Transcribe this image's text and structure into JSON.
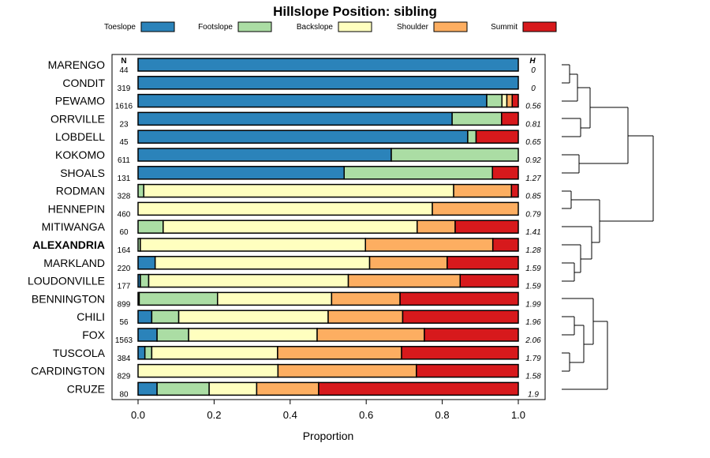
{
  "chart_data": {
    "type": "bar",
    "stacked": true,
    "orientation": "horizontal",
    "title": "Hillslope Position: sibling",
    "xlabel": "Proportion",
    "xlim": [
      0,
      1
    ],
    "xticks": [
      "0.0",
      "0.2",
      "0.4",
      "0.6",
      "0.8",
      "1.0"
    ],
    "n_header": "N",
    "h_header": "H",
    "series": [
      {
        "name": "Toeslope",
        "color": "#2b83ba"
      },
      {
        "name": "Footslope",
        "color": "#abdda4"
      },
      {
        "name": "Backslope",
        "color": "#ffffbf"
      },
      {
        "name": "Shoulder",
        "color": "#fdae61"
      },
      {
        "name": "Summit",
        "color": "#d7191c"
      }
    ],
    "categories": [
      {
        "name": "MARENGO",
        "bold": false,
        "n": "44",
        "h": "0",
        "values": [
          1.0,
          0,
          0,
          0,
          0
        ]
      },
      {
        "name": "CONDIT",
        "bold": false,
        "n": "319",
        "h": "0",
        "values": [
          1.0,
          0,
          0,
          0,
          0
        ]
      },
      {
        "name": "PEWAMO",
        "bold": false,
        "n": "1616",
        "h": "0.56",
        "values": [
          0.917,
          0.04,
          0.013,
          0.014,
          0.016
        ]
      },
      {
        "name": "ORRVILLE",
        "bold": false,
        "n": "23",
        "h": "0.81",
        "values": [
          0.826,
          0.13,
          0,
          0,
          0.044
        ]
      },
      {
        "name": "LOBDELL",
        "bold": false,
        "n": "45",
        "h": "0.65",
        "values": [
          0.867,
          0.022,
          0,
          0,
          0.111
        ]
      },
      {
        "name": "KOKOMO",
        "bold": false,
        "n": "611",
        "h": "0.92",
        "values": [
          0.666,
          0.334,
          0,
          0,
          0
        ]
      },
      {
        "name": "SHOALS",
        "bold": false,
        "n": "131",
        "h": "1.27",
        "values": [
          0.542,
          0.39,
          0,
          0,
          0.068
        ]
      },
      {
        "name": "RODMAN",
        "bold": false,
        "n": "328",
        "h": "0.85",
        "values": [
          0,
          0.015,
          0.815,
          0.152,
          0.018
        ]
      },
      {
        "name": "HENNEPIN",
        "bold": false,
        "n": "460",
        "h": "0.79",
        "values": [
          0,
          0,
          0.774,
          0.226,
          0
        ]
      },
      {
        "name": "MITIWANGA",
        "bold": false,
        "n": "60",
        "h": "1.41",
        "values": [
          0,
          0.066,
          0.668,
          0.1,
          0.166
        ]
      },
      {
        "name": "ALEXANDRIA",
        "bold": true,
        "n": "164",
        "h": "1.28",
        "values": [
          0,
          0.006,
          0.592,
          0.335,
          0.067
        ]
      },
      {
        "name": "MARKLAND",
        "bold": false,
        "n": "220",
        "h": "1.59",
        "values": [
          0.045,
          0,
          0.564,
          0.204,
          0.187
        ]
      },
      {
        "name": "LOUDONVILLE",
        "bold": false,
        "n": "177",
        "h": "1.59",
        "values": [
          0.006,
          0.022,
          0.525,
          0.294,
          0.153
        ]
      },
      {
        "name": "BENNINGTON",
        "bold": false,
        "n": "899",
        "h": "1.99",
        "values": [
          0.003,
          0.206,
          0.3,
          0.18,
          0.311
        ]
      },
      {
        "name": "CHILI",
        "bold": false,
        "n": "56",
        "h": "1.96",
        "values": [
          0.036,
          0.071,
          0.393,
          0.196,
          0.304
        ]
      },
      {
        "name": "FOX",
        "bold": false,
        "n": "1563",
        "h": "2.06",
        "values": [
          0.05,
          0.083,
          0.338,
          0.282,
          0.247
        ]
      },
      {
        "name": "TUSCOLA",
        "bold": false,
        "n": "384",
        "h": "1.79",
        "values": [
          0.018,
          0.018,
          0.331,
          0.326,
          0.307
        ]
      },
      {
        "name": "CARDINGTON",
        "bold": false,
        "n": "829",
        "h": "1.58",
        "values": [
          0,
          0,
          0.368,
          0.364,
          0.268
        ]
      },
      {
        "name": "CRUZE",
        "bold": false,
        "n": "80",
        "h": "1.9",
        "values": [
          0.05,
          0.137,
          0.125,
          0.163,
          0.525
        ]
      }
    ]
  }
}
